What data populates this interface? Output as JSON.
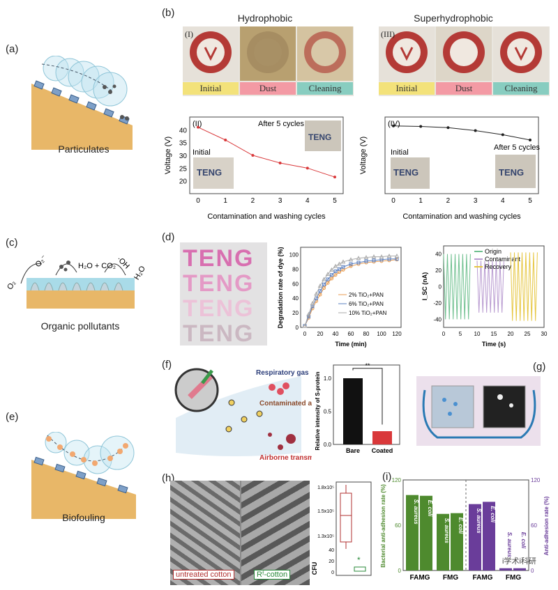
{
  "panel_labels": {
    "a": "(a)",
    "b": "(b)",
    "c": "(c)",
    "d": "(d)",
    "e": "(e)",
    "f": "(f)",
    "g": "(g)",
    "h": "(h)",
    "i": "(i)"
  },
  "captions": {
    "particulates": "Particulates",
    "organic": "Organic pollutants",
    "biofouling": "Biofouling"
  },
  "panel_b": {
    "hydrophobic": "Hydrophobic",
    "superhydrophobic": "Superhydrophobic",
    "sub_I": "(I)",
    "sub_II": "(II)",
    "sub_III": "(III)",
    "sub_IV": "(IV)",
    "bands": [
      "Initial",
      "Dust",
      "Cleaning"
    ],
    "initial": "Initial",
    "after": "After 5 cycles",
    "teng": "TENG",
    "xlabel": "Contamination and washing cycles",
    "ylabel": "Voltage (V)",
    "xticks": [
      "0",
      "1",
      "2",
      "3",
      "4",
      "5"
    ],
    "yticks": [
      "20",
      "25",
      "30",
      "35",
      "40"
    ]
  },
  "panel_c": {
    "o2": "O₂",
    "o2m": "O₂⁻",
    "h2o_co2": "H₂O + CO₂",
    "oh": "·OH",
    "h2o": "H₂O"
  },
  "panel_d": {
    "teng": "TENG",
    "ylabel1": "Degradation rate of dye (%)",
    "xlabel1": "Time (min)",
    "legend1": [
      "2% TiO₂+PAN",
      "6% TiO₂+PAN",
      "10% TiO₂+PAN"
    ],
    "xticks1": [
      "0",
      "20",
      "40",
      "60",
      "80",
      "100",
      "120"
    ],
    "yticks1": [
      "0",
      "20",
      "40",
      "60",
      "80",
      "100"
    ],
    "ylabel2": "I_SC (nA)",
    "xlabel2": "Time (s)",
    "legend2": [
      "Origin",
      "Contaminant",
      "Recovery"
    ],
    "xticks2": [
      "0",
      "5",
      "10",
      "15",
      "20",
      "25",
      "30"
    ],
    "yticks2": [
      "-40",
      "-20",
      "0",
      "20",
      "40"
    ]
  },
  "panel_f": {
    "resp": "Respiratory gas",
    "contam": "Contaminated aerosol",
    "airborne": "Airborne transmission",
    "ylabel": "Relative intensity of S-protein",
    "sig": "**",
    "categories": [
      "Bare",
      "Coated"
    ],
    "yticks": [
      "0.0",
      "0.5",
      "1.0"
    ]
  },
  "panel_h": {
    "untreated": "untreated cotton",
    "rf": "Rᶠ-cotton",
    "ylabel": "CFU",
    "yticks": [
      "1.3x10⁵",
      "1.5x10⁵",
      "1.8x10⁵",
      "40",
      "20",
      "0"
    ],
    "star": "*"
  },
  "panel_i": {
    "ylabel_left": "Bacterial anti-adhesion rate (%)",
    "ylabel_right": "Anti-adhesion rate (%)",
    "yticks_left": [
      "0",
      "60",
      "120"
    ],
    "yticks_right": [
      "0",
      "60",
      "120"
    ],
    "groups": [
      "FAMG",
      "FMG",
      "FAMG",
      "FMG"
    ],
    "bar_labels": [
      "S. aureus",
      "E. coli",
      "S. aureus",
      "E. coli",
      "S. aureus",
      "E. coli",
      "S. aureus",
      "E. coli"
    ],
    "watermark": "i学术i科研"
  },
  "colors": {
    "green": "#4e8a2e",
    "purple": "#6a3d9a",
    "red": "#d9383a",
    "orange": "#e89a4c",
    "blue": "#5a7fc0"
  },
  "chart_data": [
    {
      "type": "line",
      "id": "b_II",
      "x": [
        0,
        1,
        2,
        3,
        4,
        5
      ],
      "series": [
        {
          "values": [
            41,
            36,
            30,
            27,
            25,
            21.5
          ]
        }
      ],
      "ylim": [
        15,
        45
      ],
      "xlabel": "Contamination and washing cycles",
      "ylabel": "Voltage (V)"
    },
    {
      "type": "line",
      "id": "b_IV",
      "x": [
        0,
        1,
        2,
        3,
        4,
        5
      ],
      "series": [
        {
          "values": [
            215,
            214,
            212,
            207,
            200,
            191
          ]
        }
      ],
      "xlabel": "Contamination and washing cycles",
      "ylabel": "Voltage (V)"
    },
    {
      "type": "line",
      "id": "d_deg",
      "x": [
        0,
        5,
        10,
        15,
        20,
        25,
        30,
        35,
        40,
        45,
        50,
        60,
        70,
        80,
        90,
        100,
        110,
        120
      ],
      "series": [
        {
          "name": "2% TiO₂+PAN",
          "values": [
            2,
            13,
            26,
            36,
            45,
            54,
            61,
            67,
            72,
            76,
            79,
            84,
            87,
            89,
            90,
            91,
            92,
            93
          ]
        },
        {
          "name": "6% TiO₂+PAN",
          "values": [
            2,
            15,
            29,
            40,
            50,
            59,
            66,
            72,
            77,
            80,
            83,
            87,
            89,
            91,
            92,
            93,
            94,
            94
          ]
        },
        {
          "name": "10% TiO₂+PAN",
          "values": [
            2,
            18,
            33,
            46,
            57,
            66,
            73,
            79,
            84,
            87,
            90,
            93,
            95,
            96,
            97,
            97,
            98,
            98
          ]
        }
      ],
      "ylim": [
        0,
        110
      ],
      "xlabel": "Time (min)",
      "ylabel": "Degradation rate of dye (%)"
    },
    {
      "type": "line",
      "id": "d_isc",
      "series": [
        {
          "name": "Origin",
          "start": 0,
          "end": 8,
          "amp": 40
        },
        {
          "name": "Contaminant",
          "start": 10,
          "end": 18,
          "amp": 32
        },
        {
          "name": "Recovery",
          "start": 20,
          "end": 28,
          "amp": 42
        }
      ],
      "xlim": [
        0,
        30
      ],
      "ylim": [
        -50,
        50
      ],
      "xlabel": "Time (s)",
      "ylabel": "I_SC (nA)"
    },
    {
      "type": "bar",
      "id": "f",
      "categories": [
        "Bare",
        "Coated"
      ],
      "values": [
        1.0,
        0.2
      ],
      "ylim": [
        0,
        1.2
      ],
      "ylabel": "Relative intensity of S-protein"
    },
    {
      "type": "bar",
      "id": "i",
      "categories": [
        "FAMG S. aureus",
        "FAMG E. coli",
        "FMG S. aureus",
        "FMG E. coli",
        "FAMG S. aureus",
        "FAMG E. coli",
        "FMG S. aureus",
        "FMG E. coli"
      ],
      "values": [
        100,
        99,
        75,
        76,
        88,
        91,
        3,
        3
      ],
      "ylim": [
        0,
        120
      ]
    }
  ]
}
